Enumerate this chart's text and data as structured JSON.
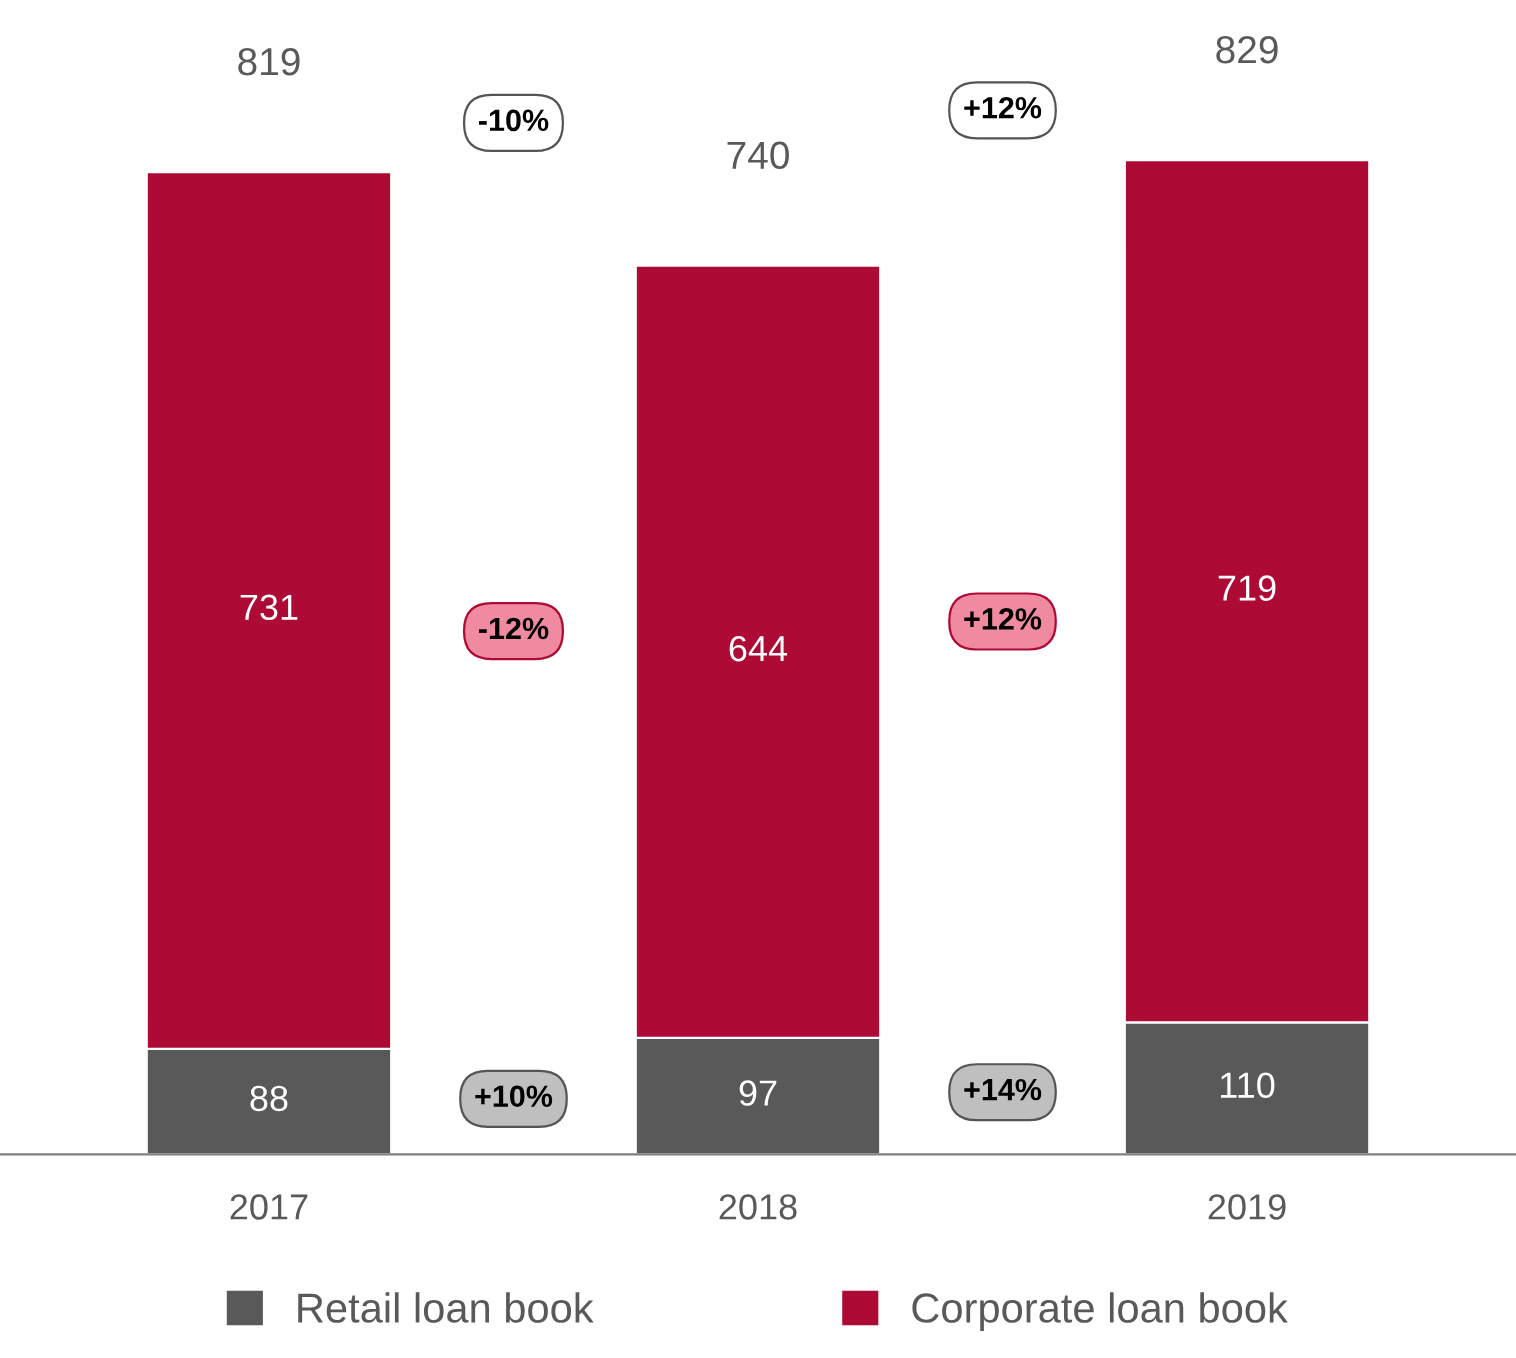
{
  "chart_data": {
    "type": "bar",
    "stacked": true,
    "categories": [
      "2017",
      "2018",
      "2019"
    ],
    "series": [
      {
        "name": "Retail loan book",
        "color": "#595959",
        "values": [
          88,
          97,
          110
        ]
      },
      {
        "name": "Corporate loan book",
        "color": "#ad0a35",
        "values": [
          731,
          644,
          719
        ]
      }
    ],
    "totals": [
      "819",
      "740",
      "829"
    ],
    "data_labels": true,
    "annotations": [
      "-10%",
      "+12%",
      "-12%",
      "+12%",
      "+10%",
      "+14%"
    ],
    "legend": "bottom",
    "grid": false
  }
}
